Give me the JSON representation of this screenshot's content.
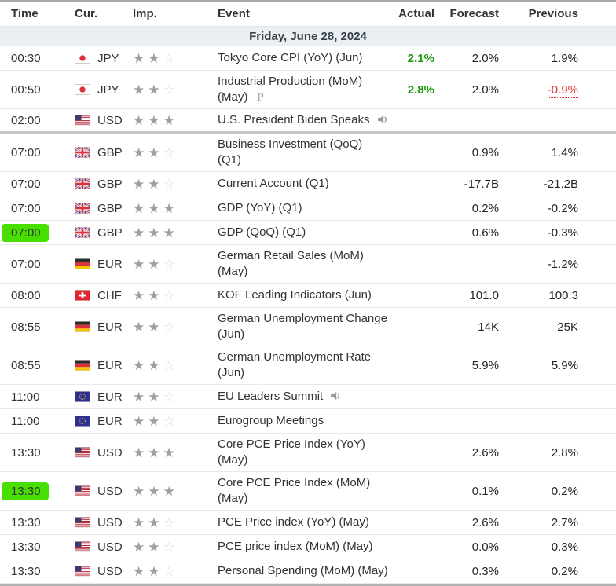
{
  "header": {
    "time": "Time",
    "cur": "Cur.",
    "imp": "Imp.",
    "event": "Event",
    "actual": "Actual",
    "forecast": "Forecast",
    "previous": "Previous"
  },
  "date_header": "Friday, June 28, 2024",
  "icons": {
    "preliminary_label": "P",
    "speaker": "speaker-icon",
    "star_filled": "★",
    "star_empty": "☆"
  },
  "colors": {
    "highlight_green": "#46df00",
    "actual_better_green": "#1a9c0a",
    "revised_red": "#e33935",
    "date_row_bg": "#eceff1",
    "star_filled": "#9aa0a5",
    "star_empty": "#d9dcdf"
  },
  "rows": [
    {
      "time": "00:30",
      "highlight": false,
      "currency": "JPY",
      "flag": "japan",
      "stars": 2,
      "event": "Tokyo Core CPI (YoY) (Jun)",
      "preliminary": false,
      "speaker": false,
      "actual": "2.1%",
      "actual_better": true,
      "forecast": "2.0%",
      "previous": "1.9%",
      "previous_revised": false,
      "thick_separator_after": false
    },
    {
      "time": "00:50",
      "highlight": false,
      "currency": "JPY",
      "flag": "japan",
      "stars": 2,
      "event": "Industrial Production (MoM)\n(May)",
      "preliminary": true,
      "speaker": false,
      "actual": "2.8%",
      "actual_better": true,
      "forecast": "2.0%",
      "previous": "-0.9%",
      "previous_revised": true,
      "thick_separator_after": false
    },
    {
      "time": "02:00",
      "highlight": false,
      "currency": "USD",
      "flag": "usa",
      "stars": 3,
      "event": "U.S. President Biden Speaks",
      "preliminary": false,
      "speaker": true,
      "actual": "",
      "actual_better": false,
      "forecast": "",
      "previous": "",
      "previous_revised": false,
      "thick_separator_after": true
    },
    {
      "time": "07:00",
      "highlight": false,
      "currency": "GBP",
      "flag": "uk",
      "stars": 2,
      "event": "Business Investment (QoQ) (Q1)",
      "preliminary": false,
      "speaker": false,
      "actual": "",
      "actual_better": false,
      "forecast": "0.9%",
      "previous": "1.4%",
      "previous_revised": false,
      "thick_separator_after": false
    },
    {
      "time": "07:00",
      "highlight": false,
      "currency": "GBP",
      "flag": "uk",
      "stars": 2,
      "event": "Current Account (Q1)",
      "preliminary": false,
      "speaker": false,
      "actual": "",
      "actual_better": false,
      "forecast": "-17.7B",
      "previous": "-21.2B",
      "previous_revised": false,
      "thick_separator_after": false
    },
    {
      "time": "07:00",
      "highlight": false,
      "currency": "GBP",
      "flag": "uk",
      "stars": 3,
      "event": "GDP (YoY) (Q1)",
      "preliminary": false,
      "speaker": false,
      "actual": "",
      "actual_better": false,
      "forecast": "0.2%",
      "previous": "-0.2%",
      "previous_revised": false,
      "thick_separator_after": false
    },
    {
      "time": "07:00",
      "highlight": true,
      "currency": "GBP",
      "flag": "uk",
      "stars": 3,
      "event": "GDP (QoQ) (Q1)",
      "preliminary": false,
      "speaker": false,
      "actual": "",
      "actual_better": false,
      "forecast": "0.6%",
      "previous": "-0.3%",
      "previous_revised": false,
      "thick_separator_after": false
    },
    {
      "time": "07:00",
      "highlight": false,
      "currency": "EUR",
      "flag": "germany",
      "stars": 2,
      "event": "German Retail Sales (MoM)\n(May)",
      "preliminary": false,
      "speaker": false,
      "actual": "",
      "actual_better": false,
      "forecast": "",
      "previous": "-1.2%",
      "previous_revised": false,
      "thick_separator_after": false
    },
    {
      "time": "08:00",
      "highlight": false,
      "currency": "CHF",
      "flag": "switzerland",
      "stars": 2,
      "event": "KOF Leading Indicators (Jun)",
      "preliminary": false,
      "speaker": false,
      "actual": "",
      "actual_better": false,
      "forecast": "101.0",
      "previous": "100.3",
      "previous_revised": false,
      "thick_separator_after": false
    },
    {
      "time": "08:55",
      "highlight": false,
      "currency": "EUR",
      "flag": "germany",
      "stars": 2,
      "event": "German Unemployment Change\n(Jun)",
      "preliminary": false,
      "speaker": false,
      "actual": "",
      "actual_better": false,
      "forecast": "14K",
      "previous": "25K",
      "previous_revised": false,
      "thick_separator_after": false
    },
    {
      "time": "08:55",
      "highlight": false,
      "currency": "EUR",
      "flag": "germany",
      "stars": 2,
      "event": "German Unemployment Rate\n(Jun)",
      "preliminary": false,
      "speaker": false,
      "actual": "",
      "actual_better": false,
      "forecast": "5.9%",
      "previous": "5.9%",
      "previous_revised": false,
      "thick_separator_after": false
    },
    {
      "time": "11:00",
      "highlight": false,
      "currency": "EUR",
      "flag": "eu",
      "stars": 2,
      "event": "EU Leaders Summit",
      "preliminary": false,
      "speaker": true,
      "actual": "",
      "actual_better": false,
      "forecast": "",
      "previous": "",
      "previous_revised": false,
      "thick_separator_after": false
    },
    {
      "time": "11:00",
      "highlight": false,
      "currency": "EUR",
      "flag": "eu",
      "stars": 2,
      "event": "Eurogroup Meetings",
      "preliminary": false,
      "speaker": false,
      "actual": "",
      "actual_better": false,
      "forecast": "",
      "previous": "",
      "previous_revised": false,
      "thick_separator_after": false
    },
    {
      "time": "13:30",
      "highlight": false,
      "currency": "USD",
      "flag": "usa",
      "stars": 3,
      "event": "Core PCE Price Index (YoY)\n(May)",
      "preliminary": false,
      "speaker": false,
      "actual": "",
      "actual_better": false,
      "forecast": "2.6%",
      "previous": "2.8%",
      "previous_revised": false,
      "thick_separator_after": false
    },
    {
      "time": "13:30",
      "highlight": true,
      "currency": "USD",
      "flag": "usa",
      "stars": 3,
      "event": "Core PCE Price Index (MoM)\n(May)",
      "preliminary": false,
      "speaker": false,
      "actual": "",
      "actual_better": false,
      "forecast": "0.1%",
      "previous": "0.2%",
      "previous_revised": false,
      "thick_separator_after": false
    },
    {
      "time": "13:30",
      "highlight": false,
      "currency": "USD",
      "flag": "usa",
      "stars": 2,
      "event": "PCE Price index (YoY) (May)",
      "preliminary": false,
      "speaker": false,
      "actual": "",
      "actual_better": false,
      "forecast": "2.6%",
      "previous": "2.7%",
      "previous_revised": false,
      "thick_separator_after": false
    },
    {
      "time": "13:30",
      "highlight": false,
      "currency": "USD",
      "flag": "usa",
      "stars": 2,
      "event": "PCE price index (MoM) (May)",
      "preliminary": false,
      "speaker": false,
      "actual": "",
      "actual_better": false,
      "forecast": "0.0%",
      "previous": "0.3%",
      "previous_revised": false,
      "thick_separator_after": false
    },
    {
      "time": "13:30",
      "highlight": false,
      "currency": "USD",
      "flag": "usa",
      "stars": 2,
      "event": "Personal Spending (MoM) (May)",
      "preliminary": false,
      "speaker": false,
      "actual": "",
      "actual_better": false,
      "forecast": "0.3%",
      "previous": "0.2%",
      "previous_revised": false,
      "thick_separator_after": false
    }
  ]
}
